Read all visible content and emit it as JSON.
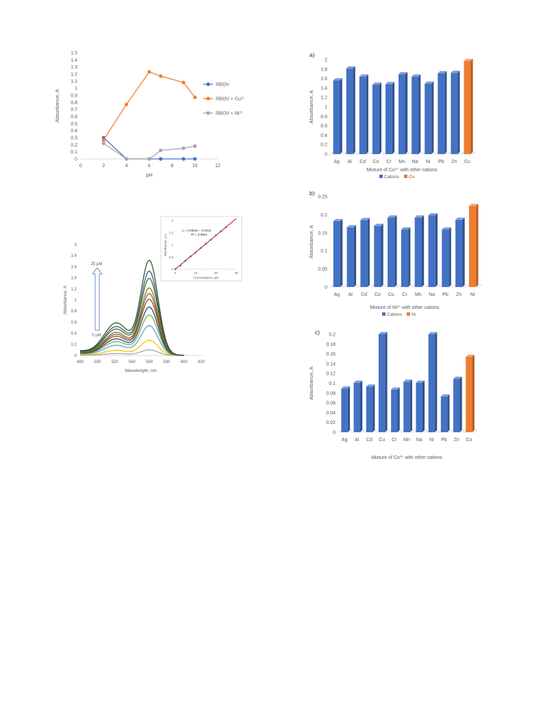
{
  "chart_data": [
    {
      "id": "ph",
      "type": "line",
      "xlabel": "pH",
      "ylabel": "Absorbance, A",
      "xlim": [
        0,
        12
      ],
      "ylim": [
        0,
        1.5
      ],
      "x_ticks": [
        "0",
        "2",
        "4",
        "6",
        "8",
        "10",
        "12"
      ],
      "y_ticks": [
        "0",
        "0.1",
        "0.2",
        "0.3",
        "0.4",
        "0.5",
        "0.6",
        "0.7",
        "0.8",
        "0.9",
        "1",
        "1.1",
        "1.2",
        "1.3",
        "1.4",
        "1.5"
      ],
      "grid": false,
      "legend_position": "right",
      "series": [
        {
          "name": "RBOV",
          "color": "#4472c4",
          "x": [
            2,
            4,
            6,
            7,
            9,
            10
          ],
          "y": [
            0.3,
            0,
            0,
            0,
            0,
            0
          ]
        },
        {
          "name": "RBOV + Cu",
          "sup": "2+",
          "color": "#ed7d31",
          "x": [
            2,
            4,
            6,
            7,
            9,
            10
          ],
          "y": [
            0.27,
            0.77,
            1.23,
            1.17,
            1.08,
            0.87
          ]
        },
        {
          "name": "RBOV + Ni",
          "sup": "2+",
          "color": "#a5a5a5",
          "x": [
            2,
            4,
            6,
            7,
            9,
            10
          ],
          "y": [
            0.22,
            0,
            0,
            0.12,
            0.15,
            0.18
          ]
        }
      ]
    },
    {
      "id": "spectra",
      "type": "line",
      "xlabel": "Wavelength, nm",
      "ylabel": "Absorbance, A",
      "xlim": [
        480,
        620
      ],
      "ylim": [
        0,
        2
      ],
      "x_ticks": [
        "480",
        "500",
        "520",
        "540",
        "560",
        "580",
        "600",
        "620"
      ],
      "y_ticks": [
        "0",
        "0.2",
        "0.4",
        "0.6",
        "0.8",
        "1",
        "1.2",
        "1.4",
        "1.6",
        "1.8",
        "2"
      ],
      "annotations": {
        "top": "25 µM",
        "bottom": "0 µM"
      },
      "peak_wavelength": 560,
      "peak_values": [
        0.1,
        0.27,
        0.53,
        0.72,
        0.86,
        1.0,
        1.1,
        1.2,
        1.37,
        1.5,
        1.69
      ],
      "series_colors": [
        "#a5a5a5",
        "#ffc000",
        "#5b9bd5",
        "#70ad47",
        "#264478",
        "#9e480e",
        "#636363",
        "#997300",
        "#43682b",
        "#255e91",
        "#375623"
      ],
      "inset": {
        "type": "scatter",
        "xlabel": "Concentration, µM",
        "ylabel": "Absorbance, a.u.",
        "equation": "y = 0.0693x + 0.0012",
        "r2": "R² = 0.9961",
        "xlim": [
          0,
          30
        ],
        "ylim": [
          0,
          2
        ],
        "x_ticks": [
          "0",
          "10",
          "20",
          "30"
        ],
        "y_ticks": [
          "0",
          "0.5",
          "1",
          "1.5",
          "2"
        ],
        "x": [
          0,
          2.5,
          5,
          7.5,
          10,
          12.5,
          15,
          17.5,
          20,
          22.5,
          25
        ],
        "y": [
          0,
          0.15,
          0.35,
          0.52,
          0.69,
          0.87,
          1.04,
          1.21,
          1.39,
          1.56,
          1.73
        ],
        "point_color": "#4472c4",
        "fit_color": "#e0201c"
      }
    },
    {
      "id": "a",
      "panel_label": "a)",
      "type": "bar",
      "xlabel_pre": "Mixture of Cu",
      "xlabel_sup": "2+",
      "xlabel_post": " with other cations",
      "ylabel": "Absorbance, A",
      "ylim": [
        0,
        2
      ],
      "y_ticks": [
        "0",
        "0.2",
        "0.4",
        "0.6",
        "0.8",
        "1",
        "1.2",
        "1.4",
        "1.6",
        "1.8",
        "2"
      ],
      "categories": [
        "Ag",
        "Al",
        "Cd",
        "Co",
        "Cr",
        "Mn",
        "Na",
        "Ni",
        "Pb",
        "Zn",
        "Cu"
      ],
      "values": [
        1.56,
        1.81,
        1.64,
        1.47,
        1.48,
        1.69,
        1.64,
        1.49,
        1.71,
        1.72,
        1.97
      ],
      "highlight_index": 10,
      "legend": [
        "Cations",
        "Cu"
      ],
      "legend_position": "bottom"
    },
    {
      "id": "b",
      "panel_label": "b)",
      "type": "bar",
      "xlabel_pre": "Mixture of Ni",
      "xlabel_sup": "2+",
      "xlabel_post": " with other cations",
      "ylabel": "Absorbance, A",
      "ylim": [
        0,
        0.25
      ],
      "y_ticks": [
        "0",
        "0.05",
        "0.1",
        "0.15",
        "0.2",
        "0.25"
      ],
      "categories": [
        "Ag",
        "Al",
        "Cd",
        "Co",
        "Cu",
        "Cr",
        "Mn",
        "Na",
        "Pb",
        "Zn",
        "Ni"
      ],
      "values": [
        0.182,
        0.165,
        0.185,
        0.169,
        0.192,
        0.159,
        0.192,
        0.198,
        0.159,
        0.186,
        0.224
      ],
      "highlight_index": 10,
      "legend": [
        "Cations",
        "Ni"
      ],
      "legend_position": "bottom"
    },
    {
      "id": "c",
      "panel_label": "c)",
      "type": "bar",
      "xlabel_pre": "Mixture of Co",
      "xlabel_sup": "2+",
      "xlabel_post": " with other cations",
      "ylabel": "Absorbance, A",
      "ylim": [
        0,
        0.2
      ],
      "y_ticks": [
        "0",
        "0.02",
        "0.04",
        "0.06",
        "0.08",
        "0.1",
        "0.12",
        "0.14",
        "0.16",
        "0.18",
        "0.2"
      ],
      "categories": [
        "Ag",
        "Al",
        "Cd",
        "Cu",
        "Cr",
        "Mn",
        "Na",
        "Ni",
        "Pb",
        "Zn",
        "Co"
      ],
      "values": [
        0.089,
        0.101,
        0.093,
        0.2,
        0.087,
        0.103,
        0.101,
        0.2,
        0.073,
        0.109,
        0.154
      ],
      "highlight_index": 10,
      "legend": [],
      "legend_position": "none"
    }
  ],
  "colors": {
    "cations": "#4472c4",
    "highlight": "#ed7d31",
    "axis_text": "#595959",
    "axis_line": "#d9d9d9"
  }
}
